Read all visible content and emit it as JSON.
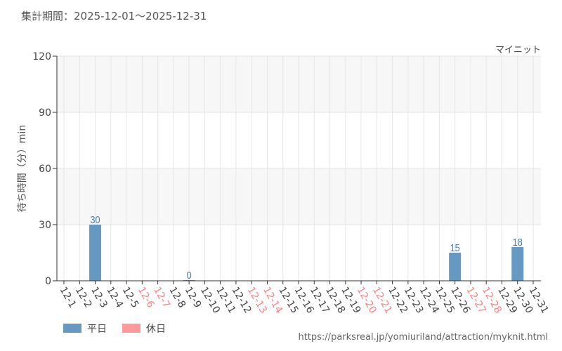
{
  "title": "集計期間：2025-12-01〜2025-12-31",
  "attraction_label": "マイニット",
  "source_url": "https://parksreal.jp/yomiuriland/attraction/myknit.html",
  "colors": {
    "weekday": "#6699c2",
    "holiday": "#ff9999",
    "holiday_label": "#ff8080",
    "value_label": "#4a7fb0",
    "band": "#f7f7f7"
  },
  "chart_data": {
    "type": "bar",
    "ylabel": "待ち時間（分）min",
    "ylim": [
      0,
      120
    ],
    "yticks": [
      0,
      30,
      60,
      90,
      120
    ],
    "grid": true,
    "legend_placement": "bottom-left",
    "legend": [
      {
        "name": "平日",
        "color": "#6699c2"
      },
      {
        "name": "休日",
        "color": "#ff9999"
      }
    ],
    "categories": [
      "12-1",
      "12-2",
      "12-3",
      "12-4",
      "12-5",
      "12-6",
      "12-7",
      "12-8",
      "12-9",
      "12-10",
      "12-11",
      "12-12",
      "12-13",
      "12-14",
      "12-15",
      "12-16",
      "12-17",
      "12-18",
      "12-19",
      "12-20",
      "12-21",
      "12-22",
      "12-23",
      "12-24",
      "12-25",
      "12-26",
      "12-27",
      "12-28",
      "12-29",
      "12-30",
      "12-31"
    ],
    "holidays": [
      "12-6",
      "12-7",
      "12-13",
      "12-14",
      "12-20",
      "12-21",
      "12-27",
      "12-28"
    ],
    "values": [
      null,
      null,
      30,
      null,
      null,
      null,
      null,
      null,
      0,
      null,
      null,
      null,
      null,
      null,
      null,
      null,
      null,
      null,
      null,
      null,
      null,
      null,
      null,
      null,
      null,
      15,
      null,
      null,
      null,
      18,
      null
    ]
  }
}
